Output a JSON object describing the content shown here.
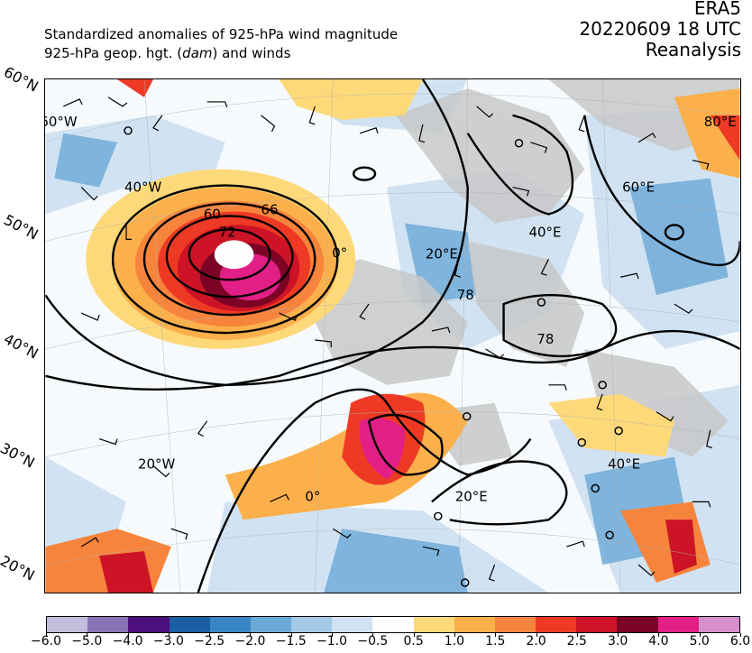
{
  "header": {
    "line1": "Standardized anomalies of 925-hPa wind magnitude",
    "line2_pre": "925-hPa geop. hgt. (",
    "line2_em": "dam",
    "line2_post": ") and winds",
    "source": "ERA5",
    "datetime": "20220609 18 UTC",
    "product": "Reanalysis"
  },
  "map": {
    "lat_labels": [
      "60°N",
      "50°N",
      "40°N",
      "30°N",
      "20°N"
    ],
    "lon_labels": [
      "60°W",
      "40°W",
      "20°W",
      "0°",
      "20°E",
      "40°E",
      "60°E",
      "80°E",
      "0°",
      "20°E",
      "40°E"
    ],
    "contour_labels": [
      "60",
      "66",
      "72",
      "78",
      "78"
    ]
  },
  "colorbar": {
    "ticks": [
      "−6.0",
      "−5.0",
      "−4.0",
      "−3.0",
      "−2.5",
      "−2.0",
      "−1.5",
      "−1.0",
      "−0.5",
      "0.5",
      "1.0",
      "1.5",
      "2.0",
      "2.5",
      "3.0",
      "4.0",
      "5.0",
      "6.0"
    ],
    "colors": [
      "#c3bddb",
      "#8a73b5",
      "#4d0f7c",
      "#1a5fa3",
      "#3a86c4",
      "#6aa8d6",
      "#a3c9e6",
      "#cfe1f2",
      "#fdfefd",
      "#fed97a",
      "#fbb04b",
      "#f7843c",
      "#ee3a24",
      "#cc1426",
      "#7c0325",
      "#e11f86",
      "#d58fcb"
    ]
  }
}
